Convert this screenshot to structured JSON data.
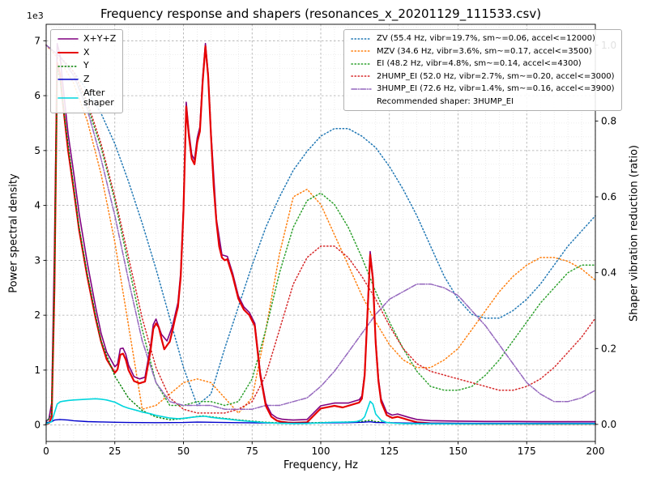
{
  "title": "Frequency response and shapers (resonances_x_20201129_111533.csv)",
  "axes": {
    "xlabel": "Frequency, Hz",
    "ylabel_left": "Power spectral density",
    "ylabel_right": "Shaper vibration reduction (ratio)",
    "y_left_multiplier": "1e3"
  },
  "chart_data": {
    "type": "line",
    "xlim": [
      0,
      200
    ],
    "x_ticks": [
      0,
      25,
      50,
      75,
      100,
      125,
      150,
      175,
      200
    ],
    "x_minor_step": 5,
    "y_left_ticks": [
      0,
      1,
      2,
      3,
      4,
      5,
      6,
      7
    ],
    "y_left_tick_scale": 1000,
    "y_left_view": [
      -300,
      7300
    ],
    "y_left_minor_step": 250,
    "y_right_tick_labels": [
      "0.0",
      "0.2",
      "0.4",
      "0.6",
      "0.8",
      "1.0"
    ],
    "y_right_view": [
      -0.045,
      1.055
    ],
    "grid": true,
    "legend_left_position": "upper left",
    "legend_right_position": "upper right",
    "psd_series": [
      {
        "id": "xyz",
        "label": "X+Y+Z",
        "color": "#800080",
        "dash": "solid",
        "width": 1.6,
        "x": [
          0,
          1,
          2,
          3,
          4,
          5,
          6,
          8,
          10,
          12,
          15,
          18,
          20,
          22,
          25,
          26,
          27,
          28,
          29,
          30,
          32,
          34,
          36,
          38,
          39,
          40,
          42,
          44,
          46,
          48,
          49,
          50,
          51,
          52,
          53,
          54,
          55,
          56,
          57,
          58,
          59,
          60,
          62,
          64,
          66,
          68,
          70,
          72,
          74,
          76,
          78,
          80,
          82,
          84,
          86,
          88,
          90,
          95,
          100,
          105,
          110,
          112,
          114,
          115,
          116,
          117,
          118,
          119,
          120,
          121,
          122,
          124,
          126,
          128,
          130,
          132,
          135,
          140,
          150,
          160,
          170,
          180,
          190,
          200
        ],
        "y": [
          70,
          110,
          400,
          3200,
          6950,
          6750,
          6250,
          5300,
          4600,
          3850,
          2950,
          2150,
          1670,
          1330,
          1060,
          1110,
          1390,
          1400,
          1290,
          1090,
          880,
          840,
          870,
          1430,
          1830,
          1930,
          1650,
          1530,
          1800,
          2230,
          2780,
          3980,
          5880,
          5330,
          4930,
          4830,
          5230,
          5430,
          6330,
          6950,
          6400,
          5350,
          3750,
          3100,
          3070,
          2750,
          2350,
          2150,
          2050,
          1850,
          950,
          400,
          200,
          130,
          105,
          95,
          90,
          100,
          350,
          400,
          400,
          430,
          460,
          530,
          950,
          2060,
          3160,
          2700,
          1550,
          850,
          470,
          230,
          180,
          200,
          170,
          140,
          100,
          80,
          70,
          65,
          65,
          60,
          60,
          60
        ]
      },
      {
        "id": "x",
        "label": "X",
        "color": "#e60000",
        "dash": "solid",
        "width": 2.2,
        "x": [
          0,
          1,
          2,
          3,
          4,
          5,
          6,
          8,
          10,
          12,
          15,
          18,
          20,
          22,
          25,
          26,
          27,
          28,
          29,
          30,
          32,
          34,
          36,
          38,
          39,
          40,
          41,
          42,
          43,
          44,
          45,
          46,
          47,
          48,
          49,
          50,
          51,
          52,
          53,
          54,
          55,
          56,
          57,
          58,
          59,
          60,
          61,
          62,
          63,
          64,
          65,
          66,
          68,
          70,
          72,
          74,
          76,
          78,
          80,
          82,
          84,
          86,
          88,
          90,
          95,
          100,
          103,
          105,
          108,
          110,
          112,
          114,
          115,
          116,
          117,
          118,
          119,
          120,
          121,
          122,
          124,
          126,
          128,
          130,
          132,
          135,
          140,
          150,
          160,
          170,
          180,
          190,
          200
        ],
        "y": [
          20,
          30,
          150,
          2500,
          6600,
          6400,
          5900,
          5000,
          4300,
          3550,
          2700,
          1950,
          1520,
          1200,
          950,
          1010,
          1280,
          1300,
          1190,
          1000,
          800,
          760,
          790,
          1350,
          1750,
          1850,
          1780,
          1570,
          1380,
          1450,
          1520,
          1720,
          1950,
          2150,
          2700,
          3900,
          5800,
          5250,
          4850,
          4750,
          5150,
          5350,
          6250,
          6900,
          6350,
          5300,
          4350,
          3700,
          3250,
          3050,
          3000,
          3020,
          2700,
          2300,
          2100,
          2000,
          1800,
          900,
          350,
          150,
          80,
          55,
          45,
          40,
          50,
          300,
          330,
          350,
          320,
          350,
          380,
          410,
          480,
          900,
          2000,
          3100,
          2650,
          1500,
          800,
          420,
          180,
          130,
          150,
          120,
          90,
          50,
          30,
          25,
          22,
          22,
          20,
          20,
          20
        ]
      },
      {
        "id": "y",
        "label": "Y",
        "color": "#008000",
        "dash": "dotted",
        "width": 1.4,
        "x": [
          0,
          2,
          3,
          4,
          5,
          6,
          8,
          10,
          12,
          15,
          18,
          20,
          25,
          30,
          35,
          40,
          45,
          50,
          53,
          55,
          57,
          60,
          63,
          65,
          70,
          75,
          80,
          85,
          90,
          95,
          100,
          105,
          110,
          115,
          117,
          118,
          120,
          125,
          130,
          140,
          150,
          160,
          170,
          180,
          190,
          200
        ],
        "y": [
          40,
          200,
          2600,
          6500,
          6300,
          5900,
          5100,
          4350,
          3600,
          2750,
          2000,
          1530,
          890,
          490,
          265,
          145,
          95,
          115,
          140,
          158,
          165,
          150,
          130,
          120,
          92,
          70,
          50,
          40,
          35,
          40,
          45,
          50,
          55,
          65,
          80,
          88,
          62,
          40,
          30,
          25,
          22,
          22,
          22,
          22,
          22,
          22
        ]
      },
      {
        "id": "z",
        "label": "Z",
        "color": "#0000cc",
        "dash": "solid",
        "width": 1.4,
        "x": [
          0,
          2,
          3,
          5,
          8,
          10,
          15,
          20,
          25,
          30,
          40,
          50,
          55,
          60,
          70,
          80,
          90,
          100,
          110,
          115,
          118,
          120,
          130,
          140,
          150,
          160,
          170,
          180,
          190,
          200
        ],
        "y": [
          40,
          60,
          90,
          100,
          90,
          78,
          62,
          55,
          50,
          46,
          42,
          46,
          52,
          50,
          42,
          36,
          32,
          36,
          42,
          50,
          58,
          46,
          36,
          32,
          30,
          30,
          30,
          30,
          30,
          30
        ]
      },
      {
        "id": "after-shaper",
        "label": "After\nshaper",
        "color": "#00d5dd",
        "dash": "solid",
        "width": 1.6,
        "x": [
          0,
          2,
          3,
          4,
          5,
          6,
          8,
          10,
          12,
          15,
          18,
          20,
          22,
          25,
          28,
          30,
          33,
          35,
          38,
          40,
          43,
          45,
          48,
          50,
          53,
          55,
          57,
          58,
          60,
          63,
          65,
          70,
          75,
          80,
          85,
          90,
          95,
          100,
          105,
          110,
          113,
          115,
          116,
          117,
          118,
          119,
          120,
          122,
          124,
          127,
          130,
          135,
          140,
          150,
          160,
          170,
          180,
          190,
          200
        ],
        "y": [
          20,
          60,
          220,
          380,
          420,
          432,
          446,
          456,
          462,
          470,
          478,
          470,
          455,
          415,
          340,
          305,
          265,
          235,
          205,
          175,
          145,
          127,
          115,
          122,
          140,
          150,
          158,
          158,
          140,
          122,
          112,
          84,
          62,
          42,
          30,
          26,
          27,
          40,
          50,
          52,
          62,
          95,
          150,
          290,
          430,
          380,
          200,
          85,
          45,
          32,
          26,
          23,
          21,
          20,
          20,
          20,
          20,
          20,
          20
        ]
      }
    ],
    "shaper_x": [
      0,
      5,
      10,
      15,
      20,
      25,
      30,
      35,
      40,
      45,
      50,
      55,
      60,
      65,
      70,
      75,
      80,
      85,
      90,
      95,
      100,
      105,
      110,
      115,
      120,
      125,
      130,
      135,
      140,
      145,
      150,
      155,
      160,
      165,
      170,
      175,
      180,
      185,
      190,
      195,
      200
    ],
    "shaper_series": [
      {
        "id": "zv",
        "label": "ZV (55.4 Hz, vibr=19.7%, sm~=0.06, accel<=12000)",
        "color": "#1f77b4",
        "dash": "dotted",
        "width": 1.5,
        "values": [
          1.0,
          0.97,
          0.93,
          0.88,
          0.82,
          0.74,
          0.64,
          0.53,
          0.41,
          0.28,
          0.15,
          0.05,
          0.08,
          0.2,
          0.31,
          0.42,
          0.52,
          0.6,
          0.67,
          0.72,
          0.76,
          0.78,
          0.78,
          0.76,
          0.73,
          0.68,
          0.62,
          0.55,
          0.47,
          0.39,
          0.33,
          0.29,
          0.28,
          0.28,
          0.3,
          0.33,
          0.37,
          0.42,
          0.47,
          0.51,
          0.55
        ]
      },
      {
        "id": "mzv",
        "label": "MZV (34.6 Hz, vibr=3.6%, sm~=0.17, accel<=3500)",
        "color": "#ff7f0e",
        "dash": "dotted",
        "width": 1.5,
        "values": [
          1.0,
          0.96,
          0.9,
          0.8,
          0.66,
          0.48,
          0.26,
          0.04,
          0.05,
          0.08,
          0.11,
          0.12,
          0.11,
          0.07,
          0.03,
          0.07,
          0.25,
          0.45,
          0.6,
          0.62,
          0.58,
          0.5,
          0.42,
          0.34,
          0.27,
          0.21,
          0.17,
          0.15,
          0.15,
          0.17,
          0.2,
          0.25,
          0.3,
          0.35,
          0.39,
          0.42,
          0.44,
          0.44,
          0.43,
          0.41,
          0.38
        ]
      },
      {
        "id": "ei",
        "label": "EI (48.2 Hz, vibr=4.8%, sm~=0.14, accel<=4300)",
        "color": "#2ca02c",
        "dash": "dotted",
        "width": 1.5,
        "values": [
          1.0,
          0.97,
          0.92,
          0.84,
          0.73,
          0.59,
          0.42,
          0.25,
          0.11,
          0.05,
          0.05,
          0.06,
          0.06,
          0.05,
          0.06,
          0.12,
          0.25,
          0.4,
          0.52,
          0.59,
          0.61,
          0.58,
          0.52,
          0.44,
          0.35,
          0.27,
          0.2,
          0.14,
          0.1,
          0.09,
          0.09,
          0.1,
          0.13,
          0.17,
          0.22,
          0.27,
          0.32,
          0.36,
          0.4,
          0.42,
          0.42
        ]
      },
      {
        "id": "2hump_ei",
        "label": "2HUMP_EI (52.0 Hz, vibr=2.7%, sm~=0.20, accel<=3000)",
        "color": "#d62728",
        "dash": "dotted",
        "width": 1.5,
        "values": [
          1.0,
          0.97,
          0.93,
          0.85,
          0.74,
          0.6,
          0.44,
          0.28,
          0.15,
          0.07,
          0.04,
          0.03,
          0.03,
          0.03,
          0.04,
          0.06,
          0.13,
          0.25,
          0.37,
          0.44,
          0.47,
          0.47,
          0.44,
          0.39,
          0.33,
          0.26,
          0.2,
          0.16,
          0.14,
          0.13,
          0.12,
          0.11,
          0.1,
          0.09,
          0.09,
          0.1,
          0.12,
          0.15,
          0.19,
          0.23,
          0.28
        ]
      },
      {
        "id": "3hump_ei",
        "label": "3HUMP_EI (72.6 Hz, vibr=1.4%, sm~=0.16, accel<=3900)",
        "color": "#9467bd",
        "dash": "dashdot",
        "width": 1.5,
        "values": [
          1.0,
          0.97,
          0.92,
          0.83,
          0.7,
          0.55,
          0.38,
          0.22,
          0.11,
          0.06,
          0.05,
          0.05,
          0.05,
          0.04,
          0.04,
          0.04,
          0.05,
          0.05,
          0.06,
          0.07,
          0.1,
          0.14,
          0.19,
          0.24,
          0.29,
          0.33,
          0.35,
          0.37,
          0.37,
          0.36,
          0.34,
          0.3,
          0.26,
          0.21,
          0.16,
          0.11,
          0.08,
          0.06,
          0.06,
          0.07,
          0.09
        ]
      }
    ],
    "recommended_label": "Recommended shaper: 3HUMP_EI"
  }
}
